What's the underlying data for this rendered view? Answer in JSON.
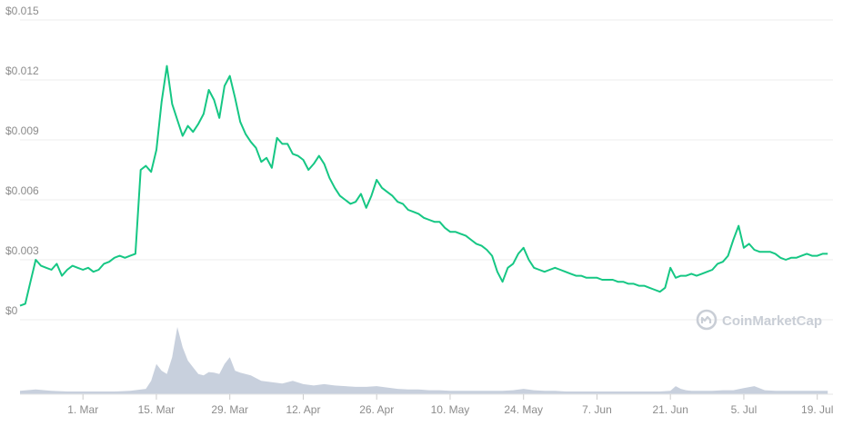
{
  "chart_data": {
    "type": "line",
    "title": "",
    "xlabel": "",
    "ylabel": "",
    "ylim": [
      0,
      0.015
    ],
    "y_ticks": [
      {
        "value": 0,
        "label": "$0"
      },
      {
        "value": 0.003,
        "label": "$0.003"
      },
      {
        "value": 0.006,
        "label": "$0.006"
      },
      {
        "value": 0.009,
        "label": "$0.009"
      },
      {
        "value": 0.012,
        "label": "$0.012"
      },
      {
        "value": 0.015,
        "label": "$0.015"
      }
    ],
    "x_ticks": [
      {
        "day": 12,
        "label": "1. Mar"
      },
      {
        "day": 26,
        "label": "15. Mar"
      },
      {
        "day": 40,
        "label": "29. Mar"
      },
      {
        "day": 54,
        "label": "12. Apr"
      },
      {
        "day": 68,
        "label": "26. Apr"
      },
      {
        "day": 82,
        "label": "10. May"
      },
      {
        "day": 96,
        "label": "24. May"
      },
      {
        "day": 110,
        "label": "7. Jun"
      },
      {
        "day": 124,
        "label": "21. Jun"
      },
      {
        "day": 138,
        "label": "5. Jul"
      },
      {
        "day": 152,
        "label": "19. Jul"
      }
    ],
    "xlim": [
      0,
      155
    ],
    "grid": true,
    "series": [
      {
        "color": "#16c784",
        "x": [
          0,
          1,
          2,
          3,
          4,
          5,
          6,
          7,
          8,
          9,
          10,
          11,
          12,
          13,
          14,
          15,
          16,
          17,
          18,
          19,
          20,
          21,
          22,
          23,
          24,
          25,
          26,
          27,
          28,
          29,
          30,
          31,
          32,
          33,
          34,
          35,
          36,
          37,
          38,
          39,
          40,
          41,
          42,
          43,
          44,
          45,
          46,
          47,
          48,
          49,
          50,
          51,
          52,
          53,
          54,
          55,
          56,
          57,
          58,
          59,
          60,
          61,
          62,
          63,
          64,
          65,
          66,
          67,
          68,
          69,
          70,
          71,
          72,
          73,
          74,
          75,
          76,
          77,
          78,
          79,
          80,
          81,
          82,
          83,
          84,
          85,
          86,
          87,
          88,
          89,
          90,
          91,
          92,
          93,
          94,
          95,
          96,
          97,
          98,
          99,
          100,
          101,
          102,
          103,
          104,
          105,
          106,
          107,
          108,
          109,
          110,
          111,
          112,
          113,
          114,
          115,
          116,
          117,
          118,
          119,
          120,
          121,
          122,
          123,
          124,
          125,
          126,
          127,
          128,
          129,
          130,
          131,
          132,
          133,
          134,
          135,
          136,
          137,
          138,
          139,
          140,
          141,
          142,
          143,
          144,
          145,
          146,
          147,
          148,
          149,
          150,
          151,
          152,
          153,
          154
        ],
        "y": [
          0.0007,
          0.0008,
          0.0019,
          0.003,
          0.0027,
          0.0026,
          0.0025,
          0.0028,
          0.0022,
          0.0025,
          0.0027,
          0.0026,
          0.0025,
          0.0026,
          0.0024,
          0.0025,
          0.0028,
          0.0029,
          0.0031,
          0.0032,
          0.0031,
          0.0032,
          0.0033,
          0.0075,
          0.0077,
          0.0074,
          0.0085,
          0.0109,
          0.0127,
          0.0108,
          0.01,
          0.0092,
          0.0097,
          0.0094,
          0.0098,
          0.0103,
          0.0115,
          0.011,
          0.0101,
          0.0117,
          0.0122,
          0.0111,
          0.0099,
          0.0093,
          0.0089,
          0.0086,
          0.0079,
          0.0081,
          0.0076,
          0.0091,
          0.0088,
          0.0088,
          0.0083,
          0.0082,
          0.008,
          0.0075,
          0.0078,
          0.0082,
          0.0078,
          0.0071,
          0.0066,
          0.0062,
          0.006,
          0.0058,
          0.0059,
          0.0063,
          0.0056,
          0.0062,
          0.007,
          0.0066,
          0.0064,
          0.0062,
          0.0059,
          0.0058,
          0.0055,
          0.0054,
          0.0053,
          0.0051,
          0.005,
          0.0049,
          0.0049,
          0.0046,
          0.0044,
          0.0044,
          0.0043,
          0.0042,
          0.004,
          0.0038,
          0.0037,
          0.0035,
          0.0032,
          0.0024,
          0.0019,
          0.0026,
          0.0028,
          0.0033,
          0.0036,
          0.003,
          0.0026,
          0.0025,
          0.0024,
          0.0025,
          0.0026,
          0.0025,
          0.0024,
          0.0023,
          0.0022,
          0.0022,
          0.0021,
          0.0021,
          0.0021,
          0.002,
          0.002,
          0.002,
          0.0019,
          0.0019,
          0.0018,
          0.0018,
          0.0017,
          0.0017,
          0.0016,
          0.0015,
          0.0014,
          0.0016,
          0.0026,
          0.0021,
          0.0022,
          0.0022,
          0.0023,
          0.0022,
          0.0023,
          0.0024,
          0.0025,
          0.0028,
          0.0029,
          0.0032,
          0.004,
          0.0047,
          0.0036,
          0.0038,
          0.0035,
          0.0034,
          0.0034,
          0.0034,
          0.0033,
          0.0031,
          0.003,
          0.0031,
          0.0031,
          0.0032,
          0.0033,
          0.0032,
          0.0032,
          0.0033,
          0.0033
        ]
      }
    ],
    "volume": {
      "color": "#c8d0dd",
      "x": [
        0,
        3,
        6,
        9,
        12,
        15,
        18,
        21,
        24,
        25,
        26,
        27,
        28,
        29,
        30,
        31,
        32,
        33,
        34,
        35,
        36,
        37,
        38,
        39,
        40,
        41,
        42,
        43,
        44,
        45,
        46,
        48,
        50,
        52,
        54,
        56,
        58,
        60,
        62,
        64,
        66,
        68,
        70,
        72,
        74,
        76,
        78,
        80,
        82,
        84,
        86,
        88,
        90,
        92,
        94,
        96,
        98,
        100,
        102,
        104,
        106,
        108,
        110,
        112,
        114,
        116,
        118,
        120,
        122,
        124,
        125,
        126,
        127,
        128,
        130,
        132,
        134,
        136,
        138,
        140,
        142,
        144,
        146,
        148,
        150,
        152,
        154
      ],
      "v": [
        0.05,
        0.07,
        0.05,
        0.04,
        0.04,
        0.04,
        0.04,
        0.05,
        0.08,
        0.2,
        0.45,
        0.35,
        0.3,
        0.55,
        1.0,
        0.7,
        0.5,
        0.4,
        0.3,
        0.28,
        0.33,
        0.32,
        0.3,
        0.45,
        0.55,
        0.35,
        0.32,
        0.3,
        0.28,
        0.24,
        0.2,
        0.18,
        0.16,
        0.2,
        0.15,
        0.13,
        0.15,
        0.13,
        0.12,
        0.11,
        0.11,
        0.12,
        0.1,
        0.08,
        0.07,
        0.07,
        0.06,
        0.06,
        0.05,
        0.05,
        0.05,
        0.05,
        0.05,
        0.05,
        0.06,
        0.08,
        0.06,
        0.05,
        0.05,
        0.04,
        0.04,
        0.04,
        0.04,
        0.04,
        0.04,
        0.04,
        0.04,
        0.04,
        0.04,
        0.05,
        0.12,
        0.08,
        0.06,
        0.05,
        0.05,
        0.05,
        0.06,
        0.06,
        0.09,
        0.12,
        0.06,
        0.05,
        0.05,
        0.05,
        0.05,
        0.05,
        0.05
      ]
    }
  },
  "watermark": {
    "text": "CoinMarketCap",
    "icon": "coinmarketcap-logo-icon"
  }
}
